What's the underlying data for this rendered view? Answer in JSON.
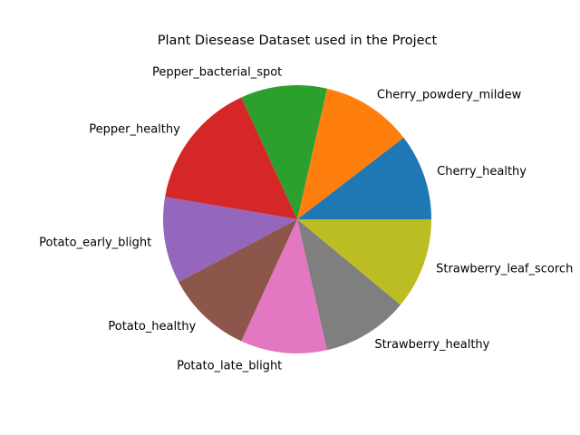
{
  "chart_data": {
    "type": "pie",
    "title": "Plant Diesease Dataset used in the Project",
    "categories": [
      "Cherry_healthy",
      "Cherry_powdery_mildew",
      "Pepper_bacterial_spot",
      "Pepper_healthy",
      "Potato_early_blight",
      "Potato_healthy",
      "Potato_late_blight",
      "Strawberry_healthy",
      "Strawberry_leaf_scorch"
    ],
    "values": [
      10.5,
      11.1,
      10.5,
      15.6,
      10.5,
      10.5,
      10.5,
      10.5,
      11.1
    ],
    "colors": [
      "#1f77b4",
      "#ff7f0e",
      "#2ca02c",
      "#d62728",
      "#9467bd",
      "#8c564b",
      "#e377c2",
      "#7f7f7f",
      "#bcbd22"
    ],
    "start_angle": 0,
    "direction": "counterclockwise"
  }
}
